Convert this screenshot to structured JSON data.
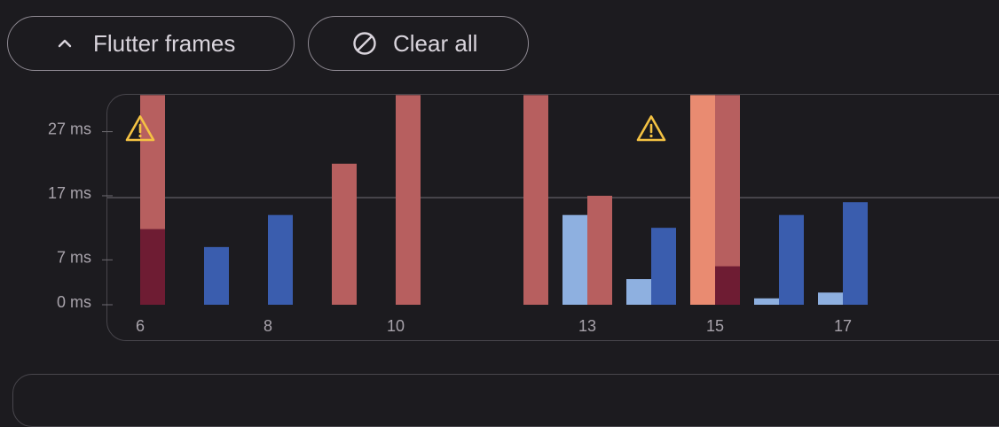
{
  "toolbar": {
    "flutter_frames_label": "Flutter frames",
    "clear_all_label": "Clear all"
  },
  "icons": {
    "flutter_frames": "chevron-up-icon",
    "clear_all": "block-icon",
    "jank": "warning-icon"
  },
  "colors": {
    "background": "#1c1b1f",
    "ui_dark": "#3a5dae",
    "ui_light": "#8eb0e0",
    "raster": "#b75f5f",
    "raster_light": "#e98b71",
    "jank_dark": "#6e1c33",
    "warning": "#f4c243",
    "axis": "#a8a3ab"
  },
  "chart_data": {
    "type": "bar",
    "y_ticks": [
      {
        "value": 0,
        "label": "0 ms"
      },
      {
        "value": 7,
        "label": "7 ms"
      },
      {
        "value": 17,
        "label": "17 ms"
      },
      {
        "value": 27,
        "label": "27 ms"
      }
    ],
    "x_ticks": [
      {
        "frame": 6,
        "label": "6"
      },
      {
        "frame": 8,
        "label": "8"
      },
      {
        "frame": 10,
        "label": "10"
      },
      {
        "frame": 13,
        "label": "13"
      },
      {
        "frame": 15,
        "label": "15"
      },
      {
        "frame": 17,
        "label": "17"
      }
    ],
    "ylim": [
      0,
      32.7
    ],
    "target_line_ms": 16.7,
    "grid": "horizontal target line at 16.7 ms",
    "frames": [
      {
        "frame": 6,
        "ui_ms": 0,
        "raster_ms": 32.7,
        "overflow_ms": 11.8,
        "jank": true
      },
      {
        "frame": 7,
        "ui_ms": 0,
        "raster_ms": 9,
        "overflow_ms": 0,
        "jank": false,
        "ui_series": true
      },
      {
        "frame": 8,
        "ui_ms": 0,
        "raster_ms": 14,
        "overflow_ms": 0,
        "jank": false,
        "ui_series": true
      },
      {
        "frame": 9,
        "ui_ms": 0,
        "raster_ms": 22,
        "overflow_ms": 0,
        "jank": false
      },
      {
        "frame": 10,
        "ui_ms": 0,
        "raster_ms": 32.7,
        "overflow_ms": 0,
        "jank": false
      },
      {
        "frame": 12,
        "ui_ms": 0,
        "raster_ms": 32.7,
        "overflow_ms": 0,
        "jank": false
      },
      {
        "frame": 13,
        "ui_ms": 14,
        "raster_ms": 17,
        "overflow_ms": 0,
        "jank": false
      },
      {
        "frame": 14,
        "ui_ms": 4,
        "raster_ms": 12,
        "overflow_ms": 0,
        "jank": false,
        "ui_series": true
      },
      {
        "frame": 15,
        "ui_ms": 32.7,
        "raster_ms": 32.7,
        "overflow_ms": 6,
        "jank": true,
        "ui_light_red": true
      },
      {
        "frame": 16,
        "ui_ms": 1,
        "raster_ms": 14,
        "overflow_ms": 0,
        "jank": false,
        "ui_series": true
      },
      {
        "frame": 17,
        "ui_ms": 1.9,
        "raster_ms": 16,
        "overflow_ms": 0,
        "jank": false,
        "ui_series": true
      }
    ]
  }
}
